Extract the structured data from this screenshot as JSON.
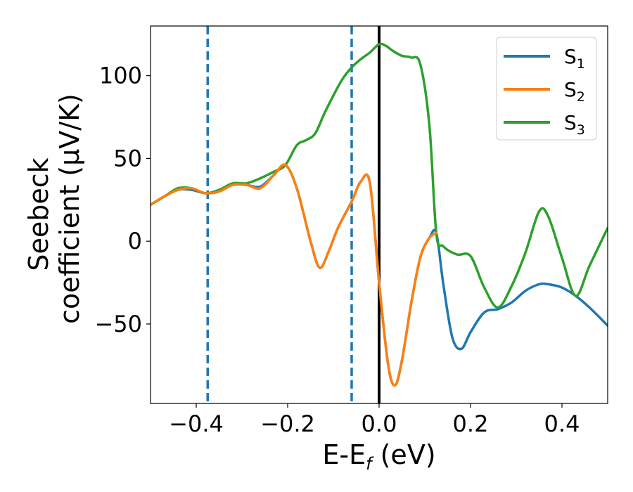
{
  "chart_data": {
    "type": "line",
    "xlabel_main": "E-E",
    "xlabel_sub": "f",
    "xlabel_units": " (eV)",
    "ylabel_line1": "Seebeck",
    "ylabel_line2": "coefficient  (μV/K)",
    "xlim": [
      -0.5,
      0.5
    ],
    "ylim": [
      -98,
      130
    ],
    "xticks": [
      -0.4,
      -0.2,
      0.0,
      0.2,
      0.4
    ],
    "xtick_labels": [
      "−0.4",
      "−0.2",
      "0.0",
      "0.2",
      "0.4"
    ],
    "yticks": [
      -50,
      0,
      50,
      100
    ],
    "ytick_labels": [
      "−50",
      "0",
      "50",
      "100"
    ],
    "vlines": [
      {
        "x": -0.375,
        "style": "dashed",
        "color": "#1f77b4"
      },
      {
        "x": -0.06,
        "style": "dashed",
        "color": "#1f77b4"
      },
      {
        "x": 0.0,
        "style": "solid",
        "color": "#000000"
      }
    ],
    "legend_position": "top-right",
    "series": [
      {
        "name": "S",
        "subscript": "1",
        "color": "#1f77b4",
        "x": [
          -0.5,
          -0.47,
          -0.44,
          -0.41,
          -0.38,
          -0.35,
          -0.32,
          -0.29,
          -0.26,
          -0.23,
          -0.205,
          -0.18,
          -0.15,
          -0.13,
          -0.11,
          -0.09,
          -0.06,
          -0.04,
          -0.02,
          0.0,
          0.02,
          0.035,
          0.05,
          0.07,
          0.09,
          0.11,
          0.125,
          0.14,
          0.16,
          0.18,
          0.2,
          0.23,
          0.26,
          0.29,
          0.32,
          0.35,
          0.37,
          0.4,
          0.43,
          0.46,
          0.5
        ],
        "y": [
          22,
          27,
          31,
          31,
          29,
          30,
          34,
          34,
          33,
          40,
          46,
          32,
          0,
          -16,
          -6,
          8,
          24,
          36,
          35,
          -25,
          -75,
          -87,
          -72,
          -38,
          -10,
          2,
          5,
          -25,
          -58,
          -65,
          -55,
          -43,
          -41,
          -37,
          -30,
          -26,
          -26,
          -28,
          -33,
          -40,
          -51
        ]
      },
      {
        "name": "S",
        "subscript": "2",
        "color": "#ff7f0e",
        "x": [
          -0.5,
          -0.47,
          -0.44,
          -0.41,
          -0.38,
          -0.35,
          -0.32,
          -0.29,
          -0.26,
          -0.23,
          -0.205,
          -0.18,
          -0.15,
          -0.13,
          -0.11,
          -0.09,
          -0.06,
          -0.04,
          -0.02,
          0.0,
          0.02,
          0.035,
          0.05,
          0.07,
          0.09,
          0.11,
          0.125
        ],
        "y": [
          22,
          27,
          31,
          32,
          29,
          30,
          34,
          34,
          32,
          40,
          46,
          32,
          0,
          -16,
          -6,
          8,
          24,
          36,
          35,
          -25,
          -75,
          -87,
          -72,
          -38,
          -10,
          2,
          5
        ]
      },
      {
        "name": "S",
        "subscript": "3",
        "color": "#2ca02c",
        "x": [
          -0.5,
          -0.47,
          -0.44,
          -0.41,
          -0.38,
          -0.35,
          -0.32,
          -0.29,
          -0.26,
          -0.23,
          -0.205,
          -0.18,
          -0.16,
          -0.14,
          -0.12,
          -0.1,
          -0.08,
          -0.06,
          -0.04,
          -0.02,
          0.0,
          0.015,
          0.03,
          0.05,
          0.07,
          0.09,
          0.11,
          0.125,
          0.14,
          0.17,
          0.2,
          0.23,
          0.26,
          0.29,
          0.32,
          0.35,
          0.37,
          0.4,
          0.43,
          0.46,
          0.5
        ],
        "y": [
          22,
          27,
          32,
          32,
          29,
          31,
          35,
          35,
          38,
          42,
          46,
          58,
          61,
          65,
          77,
          88,
          98,
          105,
          110,
          114,
          119,
          118,
          115,
          112,
          111,
          107,
          70,
          5,
          -3,
          -8,
          -9,
          -28,
          -40,
          -27,
          -7,
          18,
          15,
          -10,
          -33,
          -15,
          8
        ]
      }
    ]
  }
}
